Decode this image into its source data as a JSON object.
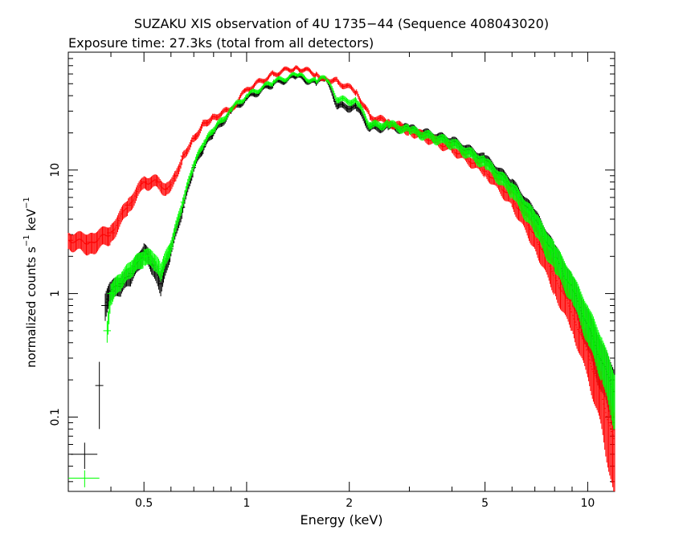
{
  "chart_data": {
    "type": "scatter",
    "title": "SUZAKU XIS observation of 4U 1735−44 (Sequence 408043020)",
    "subtitle": "Exposure time: 27.3ks (total from all detectors)",
    "xlabel": "Energy (keV)",
    "ylabel_main": "normalized counts s",
    "ylabel_sup1": "−1",
    "ylabel_mid": " keV",
    "ylabel_sup2": "−1",
    "x_scale": "log",
    "y_scale": "log",
    "xlim": [
      0.3,
      12
    ],
    "ylim": [
      0.025,
      90
    ],
    "grid": false,
    "x_ticks": [
      0.5,
      1,
      2,
      5,
      10
    ],
    "x_tick_labels": [
      "0.5",
      "1",
      "2",
      "5",
      "10"
    ],
    "y_ticks": [
      0.1,
      1,
      10
    ],
    "y_tick_labels": [
      "0.1",
      "1",
      "10"
    ],
    "series": [
      {
        "color": "#000000",
        "points": [
          [
            0.335,
            0.05,
            0.03,
            0.012
          ],
          [
            0.37,
            0.18,
            0.01,
            0.1
          ],
          [
            0.385,
            0.8,
            0.01,
            0.2
          ],
          [
            0.4,
            1.05,
            0.01,
            0.2
          ],
          [
            0.43,
            1.2,
            0.01,
            0.2
          ],
          [
            0.46,
            1.45,
            0.01,
            0.25
          ],
          [
            0.5,
            2.2,
            0.01,
            0.35
          ],
          [
            0.53,
            1.7,
            0.01,
            0.3
          ],
          [
            0.56,
            1.2,
            0.01,
            0.25
          ],
          [
            0.6,
            2.3,
            0.01,
            0.3
          ],
          [
            0.65,
            5.0,
            0.01,
            0.5
          ],
          [
            0.7,
            10.5,
            0.01,
            0.8
          ],
          [
            0.75,
            15.5,
            0.01,
            1.0
          ],
          [
            0.8,
            20.0,
            0.01,
            1.2
          ],
          [
            0.9,
            30.0,
            0.01,
            1.5
          ],
          [
            1.0,
            38.0,
            0.01,
            1.5
          ],
          [
            1.2,
            50.0,
            0.01,
            2.0
          ],
          [
            1.4,
            57.0,
            0.01,
            2.0
          ],
          [
            1.6,
            50.0,
            0.01,
            2.0
          ],
          [
            1.7,
            55.0,
            0.01,
            2.0
          ],
          [
            1.85,
            33.0,
            0.01,
            2.0
          ],
          [
            2.1,
            32.0,
            0.01,
            2.0
          ],
          [
            2.3,
            22.0,
            0.01,
            1.5
          ],
          [
            2.6,
            22.5,
            0.01,
            1.5
          ],
          [
            3.0,
            21.5,
            0.01,
            1.5
          ],
          [
            4.0,
            17.0,
            0.01,
            1.5
          ],
          [
            5.0,
            12.0,
            0.01,
            1.2
          ],
          [
            6.0,
            7.5,
            0.01,
            1.0
          ],
          [
            7.0,
            4.0,
            0.01,
            0.8
          ],
          [
            8.0,
            2.0,
            0.01,
            0.5
          ],
          [
            9.0,
            1.1,
            0.01,
            0.3
          ],
          [
            10.0,
            0.55,
            0.01,
            0.2
          ],
          [
            11.0,
            0.28,
            0.01,
            0.12
          ],
          [
            12.0,
            0.16,
            0.01,
            0.08
          ]
        ]
      },
      {
        "color": "#ff0000",
        "points": [
          [
            0.3,
            2.7,
            0.01,
            0.4
          ],
          [
            0.35,
            2.6,
            0.01,
            0.5
          ],
          [
            0.4,
            3.1,
            0.01,
            0.5
          ],
          [
            0.45,
            5.2,
            0.01,
            0.7
          ],
          [
            0.5,
            8.0,
            0.01,
            0.9
          ],
          [
            0.55,
            8.0,
            0.01,
            0.9
          ],
          [
            0.58,
            7.0,
            0.01,
            0.8
          ],
          [
            0.62,
            9.0,
            0.01,
            0.9
          ],
          [
            0.65,
            13.0,
            0.01,
            1.0
          ],
          [
            0.7,
            18.0,
            0.01,
            1.2
          ],
          [
            0.75,
            24.0,
            0.01,
            1.5
          ],
          [
            0.8,
            27.0,
            0.01,
            1.5
          ],
          [
            0.9,
            31.0,
            0.01,
            1.5
          ],
          [
            1.0,
            45.0,
            0.01,
            2.0
          ],
          [
            1.2,
            60.0,
            0.01,
            2.5
          ],
          [
            1.4,
            68.0,
            0.01,
            2.5
          ],
          [
            1.6,
            60.0,
            0.01,
            2.5
          ],
          [
            1.7,
            55.0,
            0.01,
            2.5
          ],
          [
            1.85,
            52.0,
            0.01,
            2.5
          ],
          [
            2.1,
            43.0,
            0.01,
            2.0
          ],
          [
            2.3,
            27.0,
            0.01,
            1.5
          ],
          [
            2.6,
            24.5,
            0.01,
            1.5
          ],
          [
            3.0,
            21.0,
            0.01,
            1.5
          ],
          [
            4.0,
            15.0,
            0.01,
            1.2
          ],
          [
            5.0,
            10.0,
            0.01,
            1.0
          ],
          [
            6.0,
            6.0,
            0.01,
            1.0
          ],
          [
            7.0,
            3.0,
            0.01,
            0.7
          ],
          [
            8.0,
            1.4,
            0.01,
            0.4
          ],
          [
            9.0,
            0.7,
            0.01,
            0.2
          ],
          [
            10.0,
            0.33,
            0.01,
            0.12
          ],
          [
            11.0,
            0.15,
            0.01,
            0.07
          ],
          [
            12.0,
            0.06,
            0.01,
            0.04
          ]
        ]
      },
      {
        "color": "#00ff00",
        "points": [
          [
            0.335,
            0.032,
            0.035,
            0.005
          ],
          [
            0.39,
            0.5,
            0.01,
            0.1
          ],
          [
            0.4,
            1.0,
            0.01,
            0.2
          ],
          [
            0.43,
            1.3,
            0.01,
            0.2
          ],
          [
            0.46,
            1.6,
            0.01,
            0.25
          ],
          [
            0.5,
            2.0,
            0.01,
            0.3
          ],
          [
            0.53,
            1.9,
            0.01,
            0.3
          ],
          [
            0.56,
            1.5,
            0.01,
            0.25
          ],
          [
            0.6,
            2.4,
            0.01,
            0.3
          ],
          [
            0.65,
            5.5,
            0.01,
            0.5
          ],
          [
            0.7,
            11.0,
            0.01,
            0.8
          ],
          [
            0.75,
            16.5,
            0.01,
            1.0
          ],
          [
            0.8,
            21.0,
            0.01,
            1.2
          ],
          [
            0.9,
            31.0,
            0.01,
            1.5
          ],
          [
            1.0,
            40.0,
            0.01,
            1.5
          ],
          [
            1.2,
            52.0,
            0.01,
            2.0
          ],
          [
            1.4,
            59.0,
            0.01,
            2.0
          ],
          [
            1.6,
            52.0,
            0.01,
            2.0
          ],
          [
            1.7,
            56.0,
            0.01,
            2.0
          ],
          [
            1.85,
            37.0,
            0.01,
            2.0
          ],
          [
            2.1,
            36.0,
            0.01,
            2.0
          ],
          [
            2.3,
            23.0,
            0.01,
            1.5
          ],
          [
            2.6,
            23.5,
            0.01,
            1.5
          ],
          [
            3.0,
            21.0,
            0.01,
            1.5
          ],
          [
            4.0,
            16.5,
            0.01,
            1.5
          ],
          [
            5.0,
            11.5,
            0.01,
            1.2
          ],
          [
            6.0,
            7.0,
            0.01,
            1.0
          ],
          [
            7.0,
            3.8,
            0.01,
            0.8
          ],
          [
            8.0,
            2.0,
            0.01,
            0.5
          ],
          [
            9.0,
            1.15,
            0.01,
            0.3
          ],
          [
            10.0,
            0.6,
            0.01,
            0.2
          ],
          [
            11.0,
            0.32,
            0.01,
            0.12
          ],
          [
            12.0,
            0.15,
            0.01,
            0.07
          ]
        ]
      }
    ]
  }
}
